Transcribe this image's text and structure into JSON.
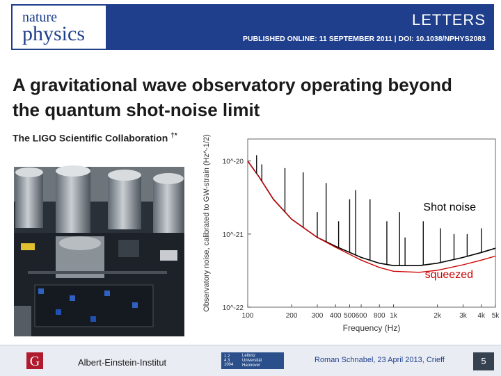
{
  "header": {
    "journal_top": "nature",
    "journal_bottom": "physics",
    "section": "LETTERS",
    "published": "PUBLISHED ONLINE: 11 SEPTEMBER 2011 | DOI: 10.1038/NPHYS2083"
  },
  "article": {
    "title": "A gravitational wave observatory operating beyond the quantum shot-noise limit",
    "authors": "The LIGO Scientific Collaboration",
    "author_marks": "†*"
  },
  "photo": {
    "alt": "LIGO detector optical table"
  },
  "chart_data": {
    "type": "line",
    "xlabel": "Frequency (Hz)",
    "ylabel": "Observatory noise, calibrated to GW-strain (Hz^-1/2)",
    "xscale": "log",
    "yscale": "log",
    "xlim": [
      100,
      5000
    ],
    "ylim": [
      1e-22,
      2e-20
    ],
    "x_ticks": [
      "100",
      "200",
      "300",
      "400",
      "500",
      "600",
      "800",
      "1k",
      "2k",
      "3k",
      "4k",
      "5k"
    ],
    "y_ticks": [
      "10^-20",
      "10^-21",
      "10^-22"
    ],
    "annotations": [
      "Shot noise",
      "squeezed"
    ],
    "series": [
      {
        "color": "#000000",
        "points": [
          [
            100,
            1e-20
          ],
          [
            120,
            6e-21
          ],
          [
            150,
            3e-21
          ],
          [
            200,
            1.6e-21
          ],
          [
            300,
            9e-22
          ],
          [
            400,
            6.8e-22
          ],
          [
            600,
            4.8e-22
          ],
          [
            800,
            4e-22
          ],
          [
            1000,
            3.7e-22
          ],
          [
            1500,
            3.7e-22
          ],
          [
            2000,
            4e-22
          ],
          [
            3000,
            4.8e-22
          ],
          [
            4000,
            5.6e-22
          ],
          [
            5000,
            6.4e-22
          ]
        ]
      },
      {
        "color": "#cc0000",
        "points": [
          [
            100,
            1e-20
          ],
          [
            120,
            6e-21
          ],
          [
            150,
            3e-21
          ],
          [
            200,
            1.6e-21
          ],
          [
            300,
            9e-22
          ],
          [
            400,
            6.6e-22
          ],
          [
            600,
            4.4e-22
          ],
          [
            800,
            3.5e-22
          ],
          [
            1000,
            3.1e-22
          ],
          [
            1500,
            3e-22
          ],
          [
            2000,
            3.2e-22
          ],
          [
            3000,
            3.8e-22
          ],
          [
            4000,
            4.4e-22
          ],
          [
            5000,
            5e-22
          ]
        ]
      }
    ],
    "peaks": [
      {
        "x": 115,
        "y": 1.2e-20
      },
      {
        "x": 125,
        "y": 9e-21
      },
      {
        "x": 180,
        "y": 8e-21
      },
      {
        "x": 240,
        "y": 7e-21
      },
      {
        "x": 300,
        "y": 2e-21
      },
      {
        "x": 345,
        "y": 5e-21
      },
      {
        "x": 420,
        "y": 1.5e-21
      },
      {
        "x": 500,
        "y": 3e-21
      },
      {
        "x": 550,
        "y": 4e-21
      },
      {
        "x": 690,
        "y": 3e-21
      },
      {
        "x": 900,
        "y": 1.5e-21
      },
      {
        "x": 1100,
        "y": 2e-21
      },
      {
        "x": 1200,
        "y": 9e-22
      },
      {
        "x": 1600,
        "y": 1.5e-21
      },
      {
        "x": 2100,
        "y": 1.2e-21
      },
      {
        "x": 2600,
        "y": 1e-21
      },
      {
        "x": 3200,
        "y": 1e-21
      },
      {
        "x": 4000,
        "y": 1.2e-21
      }
    ]
  },
  "footer": {
    "institute": "Albert-Einstein-Institut",
    "university_logo_lines": [
      "Leibniz",
      "Universität",
      "Hannover"
    ],
    "university_logo_grid": [
      "1 2",
      "4 3",
      "1004"
    ],
    "author_date": "Roman Schnabel, 23 April 2013, Crieff",
    "page": "5",
    "aei_logo_letter": "G"
  }
}
